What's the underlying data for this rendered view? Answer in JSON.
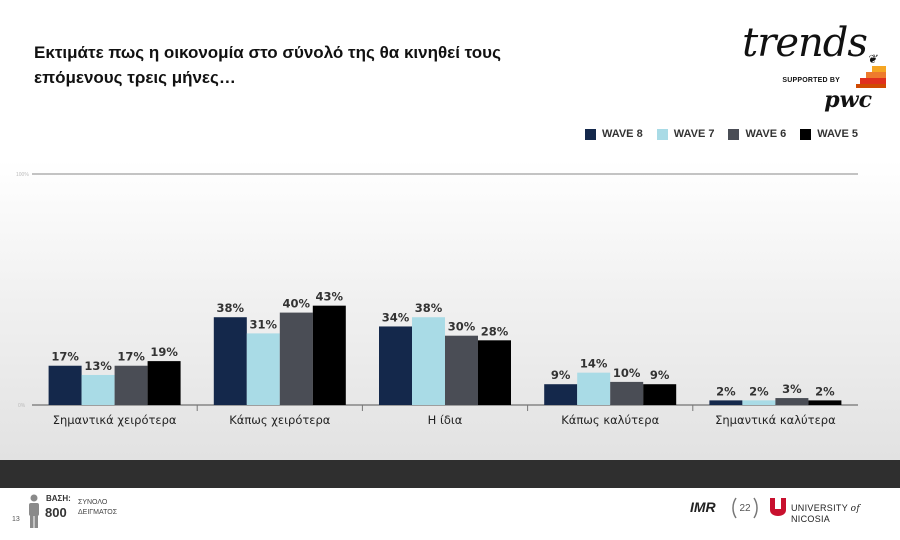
{
  "title": "Εκτιμάτε πως η οικονομία στο σύνολό της θα κινηθεί τους επόμενους τρεις  μήνες…",
  "branding": {
    "trends_logo": "trends",
    "supported_by": "SUPPORTED BY",
    "pwc": "pwc",
    "university_prefix": "UNIVERSITY",
    "university_of": "of",
    "university_name": "NICOSIA",
    "imr": "IMR"
  },
  "footer": {
    "page_number": "13",
    "base_label": "ΒΑΣΗ:",
    "base_value": "800",
    "base_desc_line1": "ΣΥΝΟΛΟ",
    "base_desc_line2": "ΔΕΙΓΜΑΤΟΣ"
  },
  "colors": {
    "wave8": "#14284b",
    "wave7": "#a9dbe6",
    "wave6": "#4a4d55",
    "wave5": "#000000",
    "dark_band": "#2f2f2f"
  },
  "chart_data": {
    "type": "bar",
    "categories": [
      "Σημαντικά χειρότερα",
      "Κάπως χειρότερα",
      "Η ίδια",
      "Κάπως καλύτερα",
      "Σημαντικά καλύτερα"
    ],
    "series": [
      {
        "name": "WAVE 8",
        "values": [
          17,
          38,
          34,
          9,
          2
        ]
      },
      {
        "name": "WAVE 7",
        "values": [
          13,
          31,
          38,
          14,
          2
        ]
      },
      {
        "name": "WAVE 6",
        "values": [
          17,
          40,
          30,
          10,
          3
        ]
      },
      {
        "name": "WAVE 5",
        "values": [
          19,
          43,
          28,
          9,
          2
        ]
      }
    ],
    "value_suffix": "%",
    "ylim": [
      0,
      100
    ],
    "y_ticks": [
      "0%",
      "100%"
    ],
    "legend_position": "top-right",
    "grid": false
  }
}
